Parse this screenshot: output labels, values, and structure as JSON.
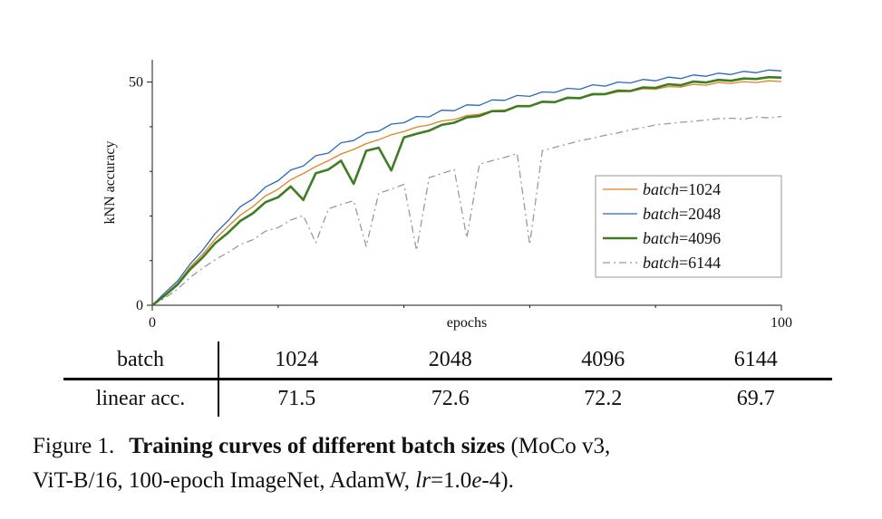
{
  "figure": {
    "caption": {
      "prefix": "Figure 1.",
      "bold": "Training curves of different batch sizes",
      "after_bold": " (MoCo v3,",
      "line2_start": "ViT-B/16, 100-epoch ImageNet, AdamW, ",
      "lr": "lr",
      "eq": "=1.0",
      "e_char": "e",
      "tail": "-4)."
    },
    "table": {
      "row1_label": "batch",
      "row2_label": "linear acc.",
      "columns": [
        "1024",
        "2048",
        "4096",
        "6144"
      ],
      "values": [
        "71.5",
        "72.6",
        "72.2",
        "69.7"
      ]
    }
  },
  "chart_data": {
    "type": "line",
    "title": "",
    "xlabel": "epochs",
    "ylabel": "kNN accuracy",
    "xlim": [
      0,
      100
    ],
    "ylim": [
      0,
      55
    ],
    "x_major_ticks": [
      0,
      100
    ],
    "x_minor_ticks": [
      20,
      40,
      60,
      80
    ],
    "y_major_ticks": [
      0,
      50
    ],
    "y_minor_ticks": [
      10,
      20,
      30,
      40
    ],
    "grid": false,
    "legend_position": "center-right",
    "draw_order": [
      3,
      0,
      1,
      2
    ],
    "x": [
      0,
      2,
      4,
      6,
      8,
      10,
      12,
      14,
      16,
      18,
      20,
      22,
      24,
      26,
      28,
      30,
      32,
      34,
      36,
      38,
      40,
      42,
      44,
      46,
      48,
      50,
      52,
      54,
      56,
      58,
      60,
      62,
      64,
      66,
      68,
      70,
      72,
      74,
      76,
      78,
      80,
      82,
      84,
      86,
      88,
      90,
      92,
      94,
      96,
      98,
      100
    ],
    "series": [
      {
        "label": "batch=1024",
        "prefix": "batch",
        "value": "1024",
        "color": "#e0821e",
        "line_width": 1.3,
        "dash": "",
        "y": [
          0,
          2.4,
          4.9,
          8.5,
          11.4,
          14.8,
          17.6,
          20.2,
          22.1,
          24.5,
          26.0,
          28.1,
          29.5,
          31.1,
          32.4,
          33.9,
          34.9,
          36.2,
          37.1,
          38.2,
          38.9,
          39.9,
          40.4,
          41.3,
          41.6,
          42.5,
          42.8,
          43.6,
          43.7,
          44.6,
          44.7,
          45.5,
          45.6,
          46.3,
          46.4,
          47.1,
          47.2,
          47.8,
          47.9,
          48.5,
          48.4,
          49.0,
          48.9,
          49.5,
          49.3,
          49.9,
          49.7,
          50.1,
          49.9,
          50.3,
          50.1
        ]
      },
      {
        "label": "batch=2048",
        "prefix": "batch",
        "value": "2048",
        "color": "#2868c0",
        "line_width": 1.3,
        "dash": "",
        "y": [
          0,
          2.8,
          5.4,
          9.2,
          12.3,
          16.1,
          18.9,
          22.1,
          23.8,
          26.5,
          27.9,
          30.3,
          31.2,
          33.5,
          34.1,
          36.4,
          36.9,
          38.6,
          39.0,
          40.6,
          40.9,
          42.3,
          42.2,
          43.7,
          43.6,
          44.9,
          44.8,
          46.0,
          45.9,
          47.0,
          46.8,
          47.8,
          47.7,
          48.6,
          48.4,
          49.4,
          49.1,
          50.0,
          49.8,
          50.6,
          50.3,
          51.1,
          50.8,
          51.6,
          51.3,
          52.0,
          51.7,
          52.4,
          52.1,
          52.7,
          52.5
        ]
      },
      {
        "label": "batch=4096",
        "prefix": "batch",
        "value": "4096",
        "color": "#3e7d23",
        "line_width": 2.6,
        "dash": "",
        "y": [
          0,
          2.2,
          4.6,
          8.0,
          10.7,
          13.9,
          16.2,
          18.9,
          20.6,
          23.1,
          24.2,
          26.6,
          23.6,
          29.6,
          30.4,
          32.4,
          27.2,
          34.6,
          35.3,
          30.2,
          37.6,
          38.4,
          39.1,
          40.4,
          40.9,
          42.1,
          42.4,
          43.5,
          43.5,
          44.6,
          44.6,
          45.6,
          45.5,
          46.5,
          46.4,
          47.3,
          47.3,
          48.1,
          48.0,
          48.8,
          48.7,
          49.5,
          49.3,
          50.1,
          49.9,
          50.5,
          50.3,
          50.8,
          50.7,
          51.1,
          51.0
        ]
      },
      {
        "label": "batch=6144",
        "prefix": "batch",
        "value": "6144",
        "color": "#9a9a9a",
        "line_width": 1.3,
        "dash": "8 4 2 4",
        "y": [
          0,
          1.6,
          3.6,
          6.2,
          8.3,
          10.2,
          11.8,
          13.6,
          14.7,
          16.6,
          17.4,
          19.1,
          20.1,
          14.0,
          21.6,
          22.6,
          23.4,
          13.2,
          25.1,
          26.0,
          27.1,
          12.3,
          28.6,
          29.5,
          30.4,
          15.1,
          31.6,
          32.4,
          33.1,
          34.0,
          13.6,
          34.6,
          35.4,
          36.1,
          36.9,
          37.4,
          38.1,
          38.6,
          39.3,
          39.8,
          40.4,
          40.7,
          41.0,
          41.2,
          41.5,
          41.8,
          41.9,
          41.7,
          42.2,
          42.0,
          42.3
        ]
      }
    ]
  }
}
